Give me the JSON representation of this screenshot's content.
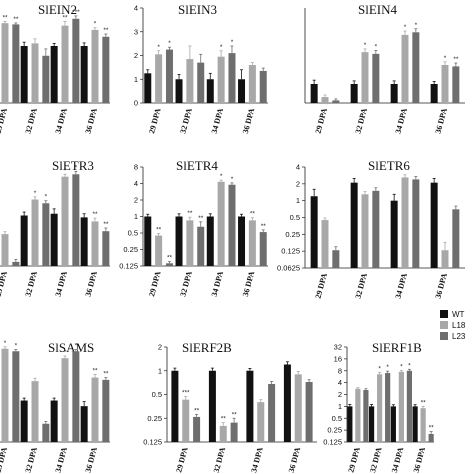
{
  "legend": {
    "position": "right",
    "entries": [
      {
        "name": "WT",
        "color": "#111111"
      },
      {
        "name": "L18",
        "color": "#a8a8a8"
      },
      {
        "name": "L23",
        "color": "#6e6e6e"
      }
    ]
  },
  "colors": {
    "WT": "#111111",
    "L18": "#a8a8a8",
    "L23": "#6e6e6e",
    "axis": "#222222"
  },
  "chart_data": [
    {
      "type": "bar",
      "title": "SlEIN2",
      "scale": "log2",
      "ylim": [
        0.125,
        4
      ],
      "yticks": [],
      "categories": [
        "29 DPA",
        "32 DPA",
        "34 DPA",
        "36 DPA"
      ],
      "series": [
        {
          "name": "WT",
          "values": [
            1.0,
            1.0,
            1.0,
            1.0
          ],
          "errors": [
            0.12,
            0.15,
            0.1,
            0.12
          ],
          "sig": [
            "",
            "",
            "",
            ""
          ]
        },
        {
          "name": "L18",
          "values": [
            2.3,
            1.1,
            2.1,
            1.8
          ],
          "errors": [
            0.15,
            0.2,
            0.35,
            0.15
          ],
          "sig": [
            "**",
            "",
            "**",
            "*"
          ]
        },
        {
          "name": "L23",
          "values": [
            2.2,
            0.7,
            2.7,
            1.4
          ],
          "errors": [
            0.12,
            0.2,
            0.3,
            0.15
          ],
          "sig": [
            "**",
            "",
            "***",
            "**"
          ]
        }
      ]
    },
    {
      "type": "bar",
      "title": "SlEIN3",
      "scale": "linear",
      "ylim": [
        0,
        4
      ],
      "yticks": [
        "0",
        "1",
        "2",
        "3",
        "4"
      ],
      "categories": [
        "29 DPA",
        "32 DPA",
        "34 DPA",
        "36 DPA"
      ],
      "series": [
        {
          "name": "WT",
          "values": [
            1.25,
            1.0,
            1.0,
            1.0
          ],
          "errors": [
            0.15,
            0.2,
            0.25,
            0.4
          ],
          "sig": [
            "",
            "",
            "",
            ""
          ]
        },
        {
          "name": "L18",
          "values": [
            2.05,
            1.85,
            1.95,
            1.6
          ],
          "errors": [
            0.15,
            0.55,
            0.25,
            0.1
          ],
          "sig": [
            "*",
            "",
            "*",
            ""
          ]
        },
        {
          "name": "L23",
          "values": [
            2.25,
            1.7,
            2.1,
            1.35
          ],
          "errors": [
            0.1,
            0.35,
            0.3,
            0.12
          ],
          "sig": [
            "*",
            "",
            "*",
            ""
          ]
        }
      ]
    },
    {
      "type": "bar",
      "title": "SlEIN4",
      "scale": "log2",
      "ylim": [
        0.5,
        16
      ],
      "yticks": [],
      "categories": [
        "29 DPA",
        "32 DPA",
        "34 DPA",
        "36 DPA"
      ],
      "series": [
        {
          "name": "WT",
          "values": [
            1.0,
            1.0,
            1.0,
            1.0
          ],
          "errors": [
            0.15,
            0.12,
            0.12,
            0.1
          ],
          "sig": [
            "",
            "",
            "",
            ""
          ]
        },
        {
          "name": "L18",
          "values": [
            0.62,
            3.2,
            6.0,
            2.0
          ],
          "errors": [
            0.05,
            0.4,
            0.9,
            0.25
          ],
          "sig": [
            "",
            "*",
            "*",
            "*"
          ]
        },
        {
          "name": "L23",
          "values": [
            0.55,
            3.0,
            6.6,
            1.9
          ],
          "errors": [
            0.03,
            0.4,
            0.9,
            0.25
          ],
          "sig": [
            "",
            "*",
            "*",
            "**"
          ]
        }
      ]
    },
    {
      "type": "bar",
      "title": "SlETR3",
      "scale": "log2",
      "ylim": [
        0.25,
        4
      ],
      "yticks": [],
      "categories": [
        "29 DPA",
        "32 DPA",
        "34 DPA",
        "36 DPA"
      ],
      "series": [
        {
          "name": "WT",
          "values": [
            2.8,
            1.0,
            1.05,
            0.95
          ],
          "errors": [
            0.4,
            0.1,
            0.15,
            0.1
          ],
          "sig": [
            "",
            "",
            "",
            ""
          ]
        },
        {
          "name": "L18",
          "values": [
            0.6,
            1.55,
            2.9,
            0.85
          ],
          "errors": [
            0.04,
            0.12,
            0.2,
            0.08
          ],
          "sig": [
            "",
            "*",
            "*",
            "**"
          ]
        },
        {
          "name": "L23",
          "values": [
            0.28,
            1.4,
            3.1,
            0.65
          ],
          "errors": [
            0.02,
            0.1,
            0.25,
            0.06
          ],
          "sig": [
            "",
            "*",
            "*",
            "**"
          ]
        }
      ]
    },
    {
      "type": "bar",
      "title": "SlETR4",
      "scale": "log2",
      "ylim": [
        0.125,
        8
      ],
      "yticks": [
        "0.125",
        "0.25",
        "0.5",
        "1",
        "2",
        "4",
        "8"
      ],
      "categories": [
        "29 DPA",
        "32 DPA",
        "34 DPA",
        "36 DPA"
      ],
      "series": [
        {
          "name": "WT",
          "values": [
            1.0,
            1.0,
            1.0,
            1.0
          ],
          "errors": [
            0.1,
            0.12,
            0.12,
            0.1
          ],
          "sig": [
            "",
            "",
            "",
            ""
          ]
        },
        {
          "name": "L18",
          "values": [
            0.45,
            0.85,
            4.3,
            0.85
          ],
          "errors": [
            0.04,
            0.12,
            0.3,
            0.1
          ],
          "sig": [
            "**",
            "**",
            "*",
            "**"
          ]
        },
        {
          "name": "L23",
          "values": [
            0.14,
            0.65,
            3.8,
            0.52
          ],
          "errors": [
            0.01,
            0.15,
            0.3,
            0.05
          ],
          "sig": [
            "**",
            "**",
            "*",
            "**"
          ]
        }
      ]
    },
    {
      "type": "bar",
      "title": "SlETR6",
      "scale": "log2",
      "ylim": [
        0.0625,
        4
      ],
      "yticks": [
        "0.0625",
        "0.125",
        "0.25",
        "0.5",
        "1",
        "2",
        "4"
      ],
      "categories": [
        "29 DPA",
        "32 DPA",
        "34 DPA",
        "36 DPA"
      ],
      "series": [
        {
          "name": "WT",
          "values": [
            1.2,
            2.1,
            1.0,
            2.1
          ],
          "errors": [
            0.4,
            0.4,
            0.3,
            0.4
          ],
          "sig": [
            "",
            "",
            "",
            ""
          ]
        },
        {
          "name": "L18",
          "values": [
            0.45,
            1.3,
            2.6,
            0.13
          ],
          "errors": [
            0.04,
            0.15,
            0.3,
            0.05
          ],
          "sig": [
            "",
            "",
            "",
            ""
          ]
        },
        {
          "name": "L23",
          "values": [
            0.13,
            1.5,
            2.4,
            0.7
          ],
          "errors": [
            0.02,
            0.2,
            0.3,
            0.1
          ],
          "sig": [
            "",
            "",
            "",
            ""
          ]
        }
      ]
    },
    {
      "type": "bar",
      "title": "SlSAMS",
      "scale": "log2",
      "ylim": [
        0.125,
        4
      ],
      "yticks": [],
      "categories": [
        "29 DPA",
        "32 DPA",
        "34 DPA",
        "36 DPA"
      ],
      "series": [
        {
          "name": "WT",
          "values": [
            1.0,
            0.55,
            0.55,
            0.45
          ],
          "errors": [
            0.1,
            0.05,
            0.05,
            0.08
          ],
          "sig": [
            "",
            "",
            "",
            ""
          ]
        },
        {
          "name": "L18",
          "values": [
            3.5,
            1.1,
            2.5,
            1.25
          ],
          "errors": [
            0.25,
            0.12,
            0.2,
            0.15
          ],
          "sig": [
            "*",
            "",
            "*",
            "**"
          ]
        },
        {
          "name": "L23",
          "values": [
            3.2,
            0.24,
            3.2,
            1.15
          ],
          "errors": [
            0.2,
            0.02,
            0.2,
            0.1
          ],
          "sig": [
            "*",
            "",
            "*",
            "**"
          ]
        }
      ]
    },
    {
      "type": "bar",
      "title": "SlERF2B",
      "scale": "log2",
      "ylim": [
        0.125,
        2
      ],
      "yticks": [
        "0.125",
        "0.25",
        "0.5",
        "1",
        "2"
      ],
      "categories": [
        "29 DPA",
        "32 DPA",
        "34 DPA",
        "36 DPA"
      ],
      "series": [
        {
          "name": "WT",
          "values": [
            1.0,
            1.0,
            1.0,
            1.2
          ],
          "errors": [
            0.08,
            0.08,
            0.07,
            0.1
          ],
          "sig": [
            "",
            "",
            "",
            ""
          ]
        },
        {
          "name": "L18",
          "values": [
            0.43,
            0.2,
            0.4,
            0.9
          ],
          "errors": [
            0.04,
            0.02,
            0.03,
            0.08
          ],
          "sig": [
            "***",
            "**",
            "",
            ""
          ]
        },
        {
          "name": "L23",
          "values": [
            0.26,
            0.22,
            0.68,
            0.72
          ],
          "errors": [
            0.02,
            0.03,
            0.05,
            0.05
          ],
          "sig": [
            "**",
            "**",
            "",
            ""
          ]
        }
      ]
    },
    {
      "type": "bar",
      "title": "SlERF1B",
      "scale": "log2",
      "ylim": [
        0.125,
        32
      ],
      "yticks": [
        "0.125",
        "0.25",
        "0.5",
        "1",
        "2",
        "4",
        "8",
        "16",
        "32"
      ],
      "categories": [
        "29 DPA",
        "32 DPA",
        "34 DPA",
        "36 DPA"
      ],
      "series": [
        {
          "name": "WT",
          "values": [
            1.0,
            1.0,
            1.0,
            1.0
          ],
          "errors": [
            0.12,
            0.12,
            0.1,
            0.1
          ],
          "sig": [
            "",
            "",
            "",
            ""
          ]
        },
        {
          "name": "L18",
          "values": [
            2.8,
            6.5,
            7.5,
            0.9
          ],
          "errors": [
            0.2,
            0.8,
            0.6,
            0.1
          ],
          "sig": [
            "",
            "*",
            "*",
            "**"
          ]
        },
        {
          "name": "L23",
          "values": [
            2.6,
            7.0,
            8.0,
            0.2
          ],
          "errors": [
            0.2,
            0.8,
            0.7,
            0.03
          ],
          "sig": [
            "",
            "*",
            "*",
            "**"
          ]
        }
      ]
    }
  ]
}
